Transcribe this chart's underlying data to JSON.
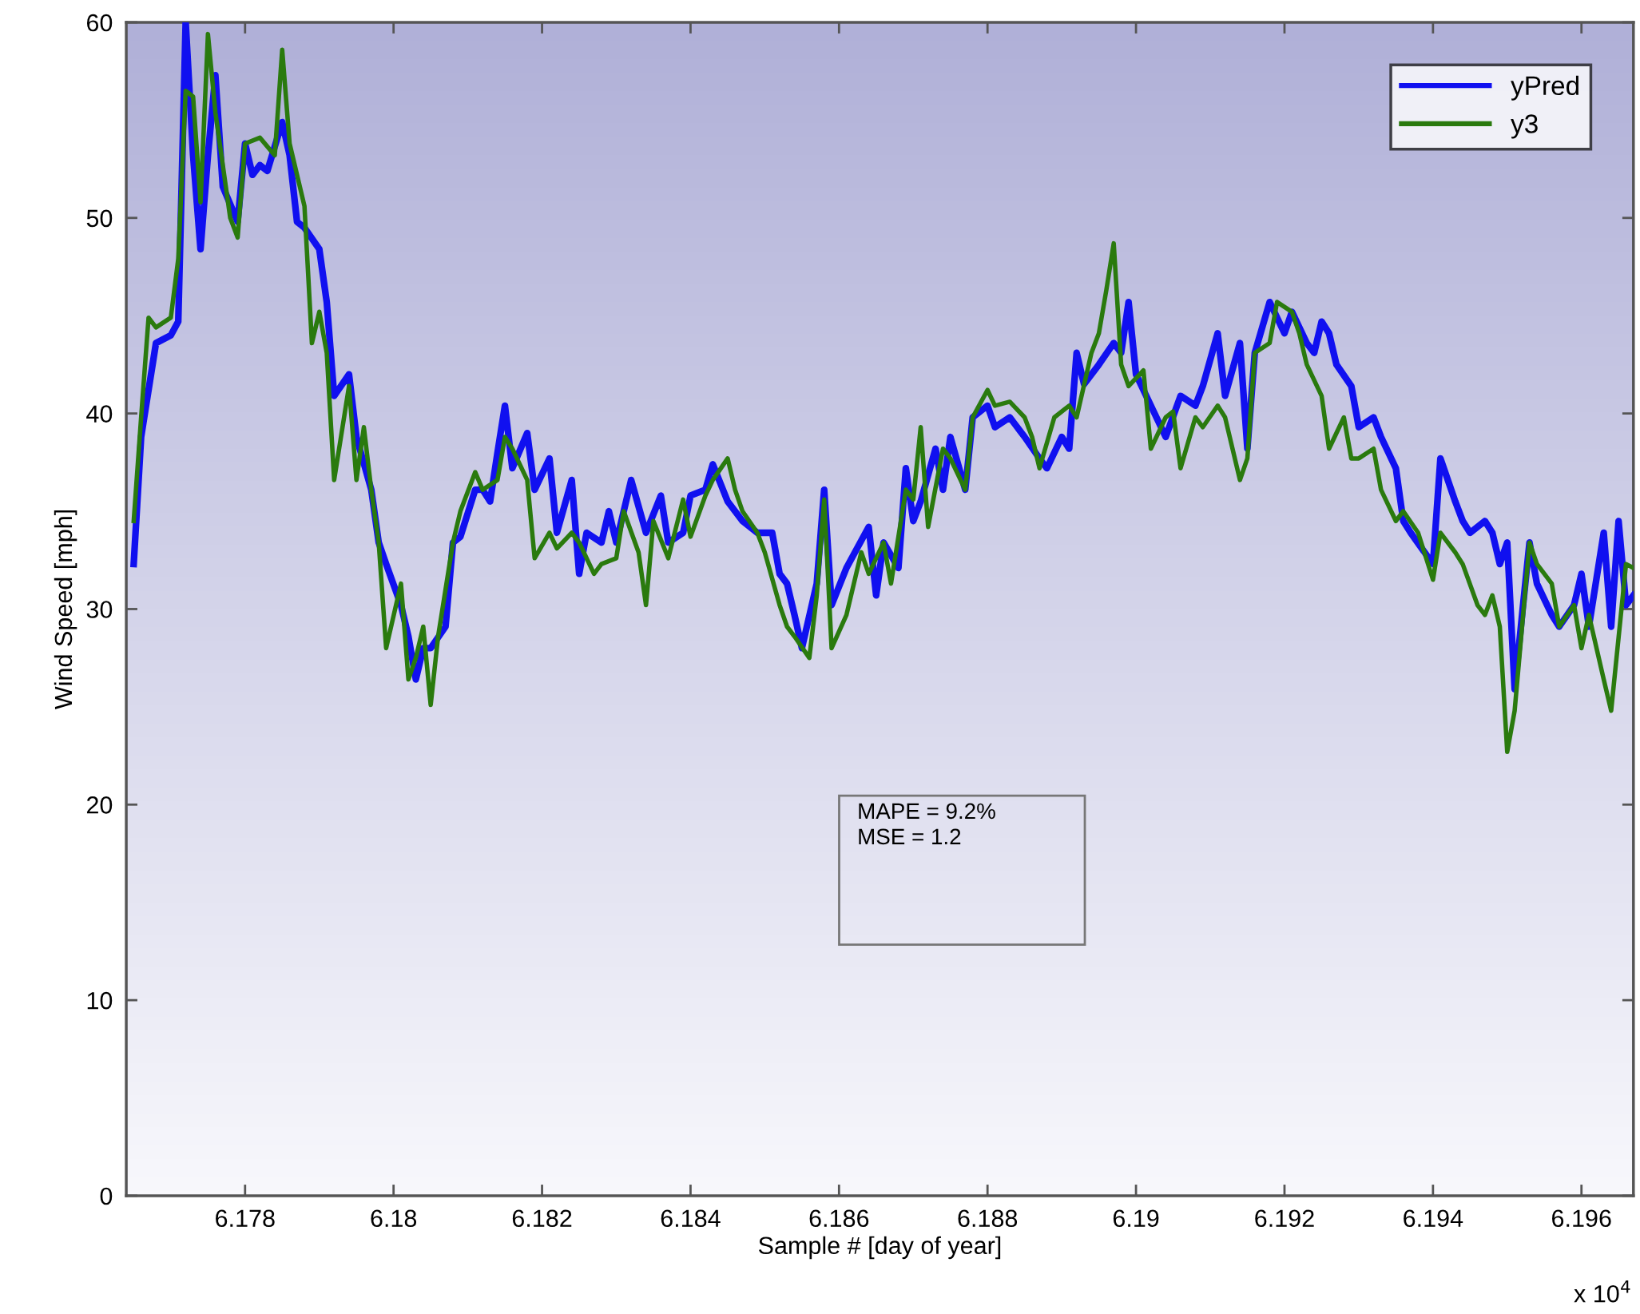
{
  "chart_data": {
    "type": "line",
    "xlabel": "Sample # [day of year]",
    "ylabel": "Wind Speed [mph]",
    "xlim": [
      6.1764,
      6.1967
    ],
    "ylim": [
      0,
      60
    ],
    "xticks": [
      6.178,
      6.18,
      6.182,
      6.184,
      6.186,
      6.188,
      6.19,
      6.192,
      6.194,
      6.196
    ],
    "yticks": [
      0,
      10,
      20,
      30,
      40,
      50,
      60
    ],
    "grid": false,
    "legend": "top right",
    "marker": "none",
    "line_style": "solid",
    "annotations": [
      "MAPE = 9.2%",
      "MSE = 1.2",
      "x 10$^{4}$"
    ],
    "series": [
      {
        "name": "yPred",
        "color": "#1010f0",
        "x": [
          6.1765,
          6.1766,
          6.1768,
          6.177,
          6.1771,
          6.1772,
          6.1773,
          6.1774,
          6.1775,
          6.1776,
          6.1777,
          6.1779,
          6.178,
          6.1781,
          6.1782,
          6.1783,
          6.1785,
          6.1786,
          6.1787,
          6.1788,
          6.179,
          6.1791,
          6.1792,
          6.1794,
          6.1795,
          6.1797,
          6.1798,
          6.1799,
          6.1801,
          6.1802,
          6.1803,
          6.1804,
          6.1805,
          6.1807,
          6.1808,
          6.1809,
          6.1811,
          6.1812,
          6.1813,
          6.1814,
          6.1815,
          6.1816,
          6.1818,
          6.1819,
          6.1821,
          6.1822,
          6.1824,
          6.1825,
          6.1826,
          6.1828,
          6.1829,
          6.183,
          6.1832,
          6.1834,
          6.1836,
          6.1837,
          6.1839,
          6.184,
          6.1842,
          6.1843,
          6.1845,
          6.1846,
          6.1847,
          6.1849,
          6.1851,
          6.1852,
          6.1853,
          6.1854,
          6.1855,
          6.1857,
          6.1858,
          6.1859,
          6.1861,
          6.1864,
          6.1865,
          6.1866,
          6.1868,
          6.1869,
          6.187,
          6.1871,
          6.1873,
          6.1874,
          6.1875,
          6.1877,
          6.1878,
          6.188,
          6.1881,
          6.1883,
          6.1885,
          6.1887,
          6.1888,
          6.189,
          6.1891,
          6.1892,
          6.1893,
          6.1895,
          6.1897,
          6.1898,
          6.1899,
          6.19,
          6.1902,
          6.1904,
          6.1906,
          6.1908,
          6.1909,
          6.1911,
          6.1912,
          6.1914,
          6.1915,
          6.1916,
          6.1918,
          6.192,
          6.1921,
          6.1923,
          6.1924,
          6.1925,
          6.1926,
          6.1927,
          6.1929,
          6.193,
          6.1932,
          6.1933,
          6.1935,
          6.1936,
          6.1937,
          6.194,
          6.1941,
          6.1943,
          6.1944,
          6.1945,
          6.1947,
          6.1948,
          6.1949,
          6.195,
          6.1951,
          6.1952,
          6.1953,
          6.1954,
          6.1956,
          6.1957,
          6.1959,
          6.196,
          6.1961,
          6.1963,
          6.1964,
          6.1965,
          6.1966,
          6.1967
        ],
        "values": [
          32.3,
          38.8,
          43.6,
          44.0,
          44.7,
          60.0,
          53.2,
          48.4,
          53.2,
          57.3,
          51.6,
          49.8,
          53.8,
          52.2,
          52.7,
          52.4,
          54.9,
          53.2,
          49.8,
          49.5,
          48.4,
          45.7,
          40.9,
          42.0,
          38.8,
          36.1,
          33.4,
          32.3,
          30.2,
          28.6,
          26.4,
          28.0,
          28.0,
          29.1,
          33.4,
          33.7,
          36.1,
          36.1,
          35.5,
          38.0,
          40.4,
          37.2,
          39.0,
          36.1,
          37.7,
          33.9,
          36.6,
          31.8,
          33.9,
          33.4,
          35.0,
          33.4,
          36.6,
          33.9,
          35.8,
          33.4,
          33.9,
          35.8,
          36.1,
          37.4,
          35.5,
          35.0,
          34.5,
          33.9,
          33.9,
          31.8,
          31.3,
          29.7,
          28.0,
          31.3,
          36.1,
          30.2,
          32.1,
          34.2,
          30.7,
          33.4,
          32.1,
          37.2,
          34.5,
          35.5,
          38.2,
          36.1,
          38.8,
          36.1,
          39.8,
          40.4,
          39.3,
          39.8,
          38.8,
          37.7,
          37.2,
          38.8,
          38.2,
          43.1,
          41.5,
          42.5,
          43.6,
          43.1,
          45.7,
          42.0,
          40.4,
          38.8,
          40.9,
          40.4,
          41.4,
          44.1,
          40.9,
          43.6,
          38.2,
          43.1,
          45.7,
          44.1,
          45.2,
          43.6,
          43.1,
          44.7,
          44.1,
          42.5,
          41.4,
          39.3,
          39.8,
          38.8,
          37.2,
          34.5,
          33.9,
          32.3,
          37.7,
          35.5,
          34.5,
          33.9,
          34.5,
          33.9,
          32.3,
          33.4,
          25.9,
          29.7,
          33.4,
          31.3,
          29.7,
          29.1,
          30.2,
          31.8,
          29.1,
          33.9,
          29.1,
          34.5,
          30.2,
          30.7
        ]
      },
      {
        "name": "y3",
        "color": "#2a7a0e",
        "x": [
          6.1765,
          6.1766,
          6.1767,
          6.1768,
          6.177,
          6.1771,
          6.1772,
          6.1773,
          6.1774,
          6.1775,
          6.1776,
          6.1778,
          6.1779,
          6.178,
          6.1782,
          6.1784,
          6.1785,
          6.1786,
          6.1788,
          6.1789,
          6.179,
          6.1791,
          6.1792,
          6.1794,
          6.1795,
          6.1796,
          6.1797,
          6.1798,
          6.1799,
          6.1801,
          6.1802,
          6.1803,
          6.1804,
          6.1805,
          6.1806,
          6.1808,
          6.1809,
          6.1811,
          6.1812,
          6.1814,
          6.1815,
          6.1816,
          6.1818,
          6.1819,
          6.1821,
          6.1822,
          6.1824,
          6.1825,
          6.1827,
          6.1828,
          6.183,
          6.1831,
          6.1833,
          6.1834,
          6.1835,
          6.1837,
          6.1839,
          6.184,
          6.1842,
          6.1843,
          6.1845,
          6.1846,
          6.1847,
          6.1849,
          6.185,
          6.1852,
          6.1853,
          6.1854,
          6.1856,
          6.1857,
          6.1858,
          6.1859,
          6.1861,
          6.1863,
          6.1864,
          6.1866,
          6.1867,
          6.1869,
          6.187,
          6.1871,
          6.1872,
          6.1874,
          6.1875,
          6.1877,
          6.1878,
          6.188,
          6.1881,
          6.1883,
          6.1885,
          6.1886,
          6.1887,
          6.1889,
          6.1891,
          6.1892,
          6.1894,
          6.1895,
          6.1896,
          6.1897,
          6.1898,
          6.1899,
          6.1901,
          6.1902,
          6.1904,
          6.1905,
          6.1906,
          6.1908,
          6.1909,
          6.1911,
          6.1912,
          6.1914,
          6.1915,
          6.1916,
          6.1918,
          6.1919,
          6.1921,
          6.1922,
          6.1923,
          6.1925,
          6.1926,
          6.1928,
          6.1929,
          6.193,
          6.1932,
          6.1933,
          6.1935,
          6.1936,
          6.1938,
          6.194,
          6.1941,
          6.1943,
          6.1944,
          6.1946,
          6.1947,
          6.1948,
          6.1949,
          6.195,
          6.1951,
          6.1953,
          6.1954,
          6.1956,
          6.1957,
          6.1959,
          6.196,
          6.1961,
          6.1963,
          6.1964,
          6.1966,
          6.1967
        ],
        "values": [
          34.5,
          39.8,
          44.9,
          44.4,
          44.9,
          47.9,
          56.5,
          56.2,
          50.8,
          59.4,
          55.4,
          50.0,
          49.0,
          53.8,
          54.1,
          53.2,
          58.6,
          53.8,
          50.6,
          43.6,
          45.2,
          43.1,
          36.6,
          41.4,
          36.6,
          39.3,
          36.1,
          33.4,
          28.0,
          31.3,
          26.4,
          27.5,
          29.1,
          25.1,
          28.6,
          33.4,
          35.0,
          37.0,
          36.1,
          36.6,
          38.8,
          38.2,
          36.6,
          32.6,
          33.9,
          33.1,
          33.9,
          33.4,
          31.8,
          32.3,
          32.6,
          35.0,
          32.9,
          30.2,
          34.5,
          32.6,
          35.6,
          33.7,
          35.8,
          36.6,
          37.7,
          36.1,
          35.0,
          33.9,
          32.9,
          30.2,
          29.1,
          28.6,
          27.5,
          30.7,
          35.6,
          28.0,
          29.7,
          32.9,
          31.8,
          33.4,
          31.3,
          36.1,
          35.6,
          39.3,
          34.2,
          38.2,
          37.7,
          36.1,
          39.8,
          41.2,
          40.4,
          40.6,
          39.8,
          38.8,
          37.2,
          39.8,
          40.4,
          39.8,
          43.1,
          44.1,
          46.3,
          48.7,
          42.5,
          41.4,
          42.2,
          38.2,
          39.8,
          40.1,
          37.2,
          39.8,
          39.3,
          40.4,
          39.8,
          36.6,
          37.7,
          43.1,
          43.6,
          45.7,
          45.2,
          44.1,
          42.5,
          40.9,
          38.2,
          39.8,
          37.7,
          37.7,
          38.2,
          36.1,
          34.5,
          35.0,
          33.9,
          31.5,
          33.9,
          32.9,
          32.3,
          30.2,
          29.7,
          30.7,
          29.1,
          22.7,
          24.8,
          33.4,
          32.3,
          31.3,
          29.1,
          30.2,
          28.0,
          29.7,
          26.4,
          24.8,
          32.3,
          32.1
        ]
      }
    ]
  }
}
